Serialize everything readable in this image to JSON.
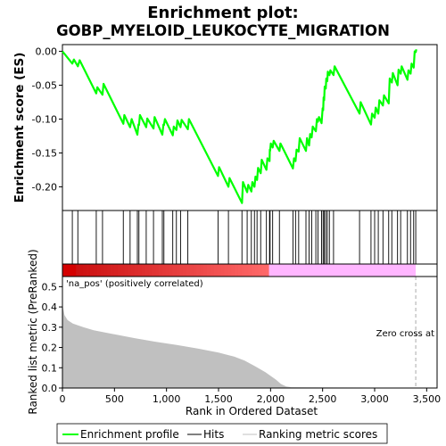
{
  "chart_data": {
    "type": "line",
    "title_lines": [
      "Enrichment plot:",
      "GOBP_MYELOID_LEUKOCYTE_MIGRATION"
    ],
    "ylabel_top": "Enrichment score (ES)",
    "ylabel_bottom": "Ranked list metric (PreRanked)",
    "xlabel": "Rank in Ordered Dataset",
    "x_range": [
      0,
      3600
    ],
    "es_ylim": [
      -0.235,
      0.01
    ],
    "metric_ylim": [
      0,
      0.55
    ],
    "x_ticks": [
      0,
      500,
      1000,
      1500,
      2000,
      2500,
      3000,
      3500
    ],
    "x_tick_labels": [
      "0",
      "500",
      "1,000",
      "1,500",
      "2,000",
      "2,500",
      "3,000",
      "3,500"
    ],
    "es_ticks": [
      0.0,
      -0.05,
      -0.1,
      -0.15,
      -0.2
    ],
    "es_tick_labels": [
      "0.00",
      "-0.05",
      "-0.10",
      "-0.15",
      "-0.20"
    ],
    "metric_ticks": [
      0.0,
      0.1,
      0.2,
      0.3,
      0.4,
      0.5
    ],
    "metric_tick_labels": [
      "0.0",
      "0.1",
      "0.2",
      "0.3",
      "0.4",
      "0.5"
    ],
    "pos_label": "'na_pos' (positively correlated)",
    "zero_cross_label": "Zero cross at",
    "zero_cross_rank": 3395,
    "n_ranks": 3400,
    "colors": {
      "es_line": "#00ff00",
      "hits": "#000000",
      "metric_fill": "#c0c0c0",
      "pos_band": "#ff0000",
      "neg_band": "#ffb6ff",
      "pos_label": "#cc0000",
      "zero_line": "#aaaaaa"
    },
    "hits": [
      95,
      148,
      325,
      385,
      585,
      650,
      720,
      735,
      805,
      875,
      960,
      975,
      1060,
      1095,
      1135,
      1205,
      1495,
      1595,
      1725,
      1775,
      1815,
      1845,
      1870,
      1905,
      1960,
      1990,
      1995,
      2020,
      2085,
      2215,
      2240,
      2270,
      2340,
      2370,
      2395,
      2435,
      2455,
      2490,
      2505,
      2515,
      2530,
      2545,
      2565,
      2605,
      2855,
      2965,
      3000,
      3035,
      3080,
      3135,
      3165,
      3220,
      3250,
      3315,
      3345,
      3375,
      3395
    ],
    "es_points": [
      [
        0,
        0.0
      ],
      [
        95,
        -0.018
      ],
      [
        110,
        -0.012
      ],
      [
        148,
        -0.022
      ],
      [
        165,
        -0.013
      ],
      [
        325,
        -0.062
      ],
      [
        335,
        -0.053
      ],
      [
        385,
        -0.064
      ],
      [
        395,
        -0.048
      ],
      [
        585,
        -0.107
      ],
      [
        595,
        -0.094
      ],
      [
        650,
        -0.112
      ],
      [
        665,
        -0.1
      ],
      [
        720,
        -0.123
      ],
      [
        730,
        -0.108
      ],
      [
        735,
        -0.109
      ],
      [
        745,
        -0.094
      ],
      [
        805,
        -0.112
      ],
      [
        815,
        -0.099
      ],
      [
        875,
        -0.114
      ],
      [
        885,
        -0.097
      ],
      [
        960,
        -0.123
      ],
      [
        970,
        -0.108
      ],
      [
        975,
        -0.109
      ],
      [
        985,
        -0.1
      ],
      [
        1060,
        -0.124
      ],
      [
        1070,
        -0.111
      ],
      [
        1095,
        -0.116
      ],
      [
        1105,
        -0.102
      ],
      [
        1135,
        -0.112
      ],
      [
        1145,
        -0.101
      ],
      [
        1205,
        -0.115
      ],
      [
        1215,
        -0.1
      ],
      [
        1495,
        -0.184
      ],
      [
        1505,
        -0.171
      ],
      [
        1595,
        -0.2
      ],
      [
        1605,
        -0.187
      ],
      [
        1725,
        -0.224
      ],
      [
        1735,
        -0.193
      ],
      [
        1775,
        -0.208
      ],
      [
        1785,
        -0.197
      ],
      [
        1815,
        -0.207
      ],
      [
        1825,
        -0.193
      ],
      [
        1845,
        -0.2
      ],
      [
        1855,
        -0.185
      ],
      [
        1870,
        -0.19
      ],
      [
        1880,
        -0.172
      ],
      [
        1905,
        -0.18
      ],
      [
        1915,
        -0.16
      ],
      [
        1960,
        -0.175
      ],
      [
        1970,
        -0.158
      ],
      [
        1990,
        -0.162
      ],
      [
        1993,
        -0.145
      ],
      [
        1995,
        -0.147
      ],
      [
        2002,
        -0.136
      ],
      [
        2020,
        -0.142
      ],
      [
        2030,
        -0.132
      ],
      [
        2085,
        -0.147
      ],
      [
        2095,
        -0.136
      ],
      [
        2215,
        -0.173
      ],
      [
        2225,
        -0.158
      ],
      [
        2240,
        -0.162
      ],
      [
        2250,
        -0.145
      ],
      [
        2270,
        -0.148
      ],
      [
        2280,
        -0.128
      ],
      [
        2340,
        -0.147
      ],
      [
        2350,
        -0.128
      ],
      [
        2370,
        -0.139
      ],
      [
        2380,
        -0.122
      ],
      [
        2395,
        -0.127
      ],
      [
        2405,
        -0.111
      ],
      [
        2435,
        -0.118
      ],
      [
        2445,
        -0.1
      ],
      [
        2455,
        -0.104
      ],
      [
        2465,
        -0.097
      ],
      [
        2490,
        -0.106
      ],
      [
        2500,
        -0.084
      ],
      [
        2505,
        -0.087
      ],
      [
        2510,
        -0.068
      ],
      [
        2515,
        -0.072
      ],
      [
        2520,
        -0.052
      ],
      [
        2530,
        -0.055
      ],
      [
        2535,
        -0.04
      ],
      [
        2545,
        -0.044
      ],
      [
        2550,
        -0.03
      ],
      [
        2565,
        -0.035
      ],
      [
        2575,
        -0.028
      ],
      [
        2605,
        -0.035
      ],
      [
        2615,
        -0.022
      ],
      [
        2855,
        -0.092
      ],
      [
        2865,
        -0.075
      ],
      [
        2965,
        -0.108
      ],
      [
        2975,
        -0.092
      ],
      [
        3000,
        -0.098
      ],
      [
        3010,
        -0.083
      ],
      [
        3035,
        -0.092
      ],
      [
        3045,
        -0.072
      ],
      [
        3080,
        -0.08
      ],
      [
        3090,
        -0.065
      ],
      [
        3135,
        -0.077
      ],
      [
        3145,
        -0.04
      ],
      [
        3165,
        -0.046
      ],
      [
        3175,
        -0.032
      ],
      [
        3220,
        -0.05
      ],
      [
        3230,
        -0.027
      ],
      [
        3250,
        -0.033
      ],
      [
        3260,
        -0.022
      ],
      [
        3315,
        -0.042
      ],
      [
        3325,
        -0.028
      ],
      [
        3345,
        -0.033
      ],
      [
        3355,
        -0.018
      ],
      [
        3375,
        -0.024
      ],
      [
        3385,
        0.0
      ],
      [
        3395,
        -0.001
      ],
      [
        3400,
        0.003
      ]
    ],
    "metric_points": [
      [
        0,
        0.412
      ],
      [
        20,
        0.36
      ],
      [
        50,
        0.335
      ],
      [
        100,
        0.318
      ],
      [
        200,
        0.3
      ],
      [
        300,
        0.285
      ],
      [
        500,
        0.265
      ],
      [
        700,
        0.245
      ],
      [
        900,
        0.228
      ],
      [
        1100,
        0.212
      ],
      [
        1300,
        0.195
      ],
      [
        1500,
        0.175
      ],
      [
        1650,
        0.155
      ],
      [
        1750,
        0.135
      ],
      [
        1850,
        0.108
      ],
      [
        1950,
        0.078
      ],
      [
        2050,
        0.042
      ],
      [
        2100,
        0.02
      ],
      [
        2150,
        0.008
      ],
      [
        2200,
        0.004
      ],
      [
        2400,
        0.003
      ],
      [
        3000,
        0.002
      ],
      [
        3400,
        0.001
      ]
    ],
    "legend": [
      {
        "key": "es",
        "label": "Enrichment profile"
      },
      {
        "key": "hits",
        "label": "Hits"
      },
      {
        "key": "metric",
        "label": "Ranking metric scores"
      }
    ]
  }
}
